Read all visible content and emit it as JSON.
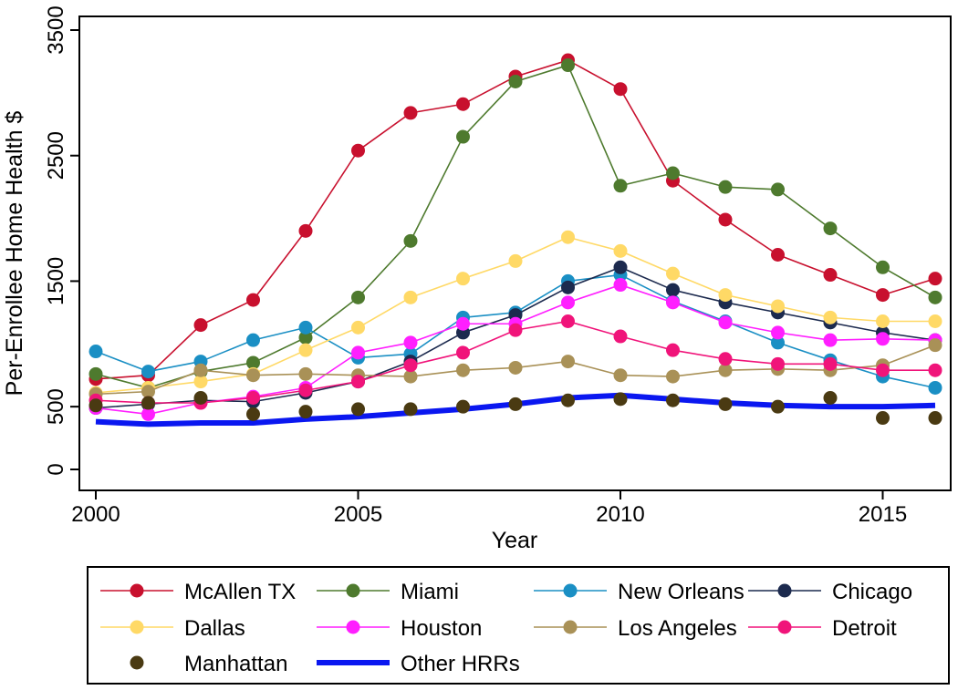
{
  "chart_data": {
    "type": "line",
    "title": "",
    "xlabel": "Year",
    "ylabel": "Per-Enrollee Home Health $",
    "xlim": [
      2000,
      2016
    ],
    "ylim": [
      0,
      3500
    ],
    "x_ticks": [
      2000,
      2005,
      2010,
      2015
    ],
    "y_ticks": [
      0,
      500,
      1500,
      2500,
      3500
    ],
    "grid": false,
    "legend_position": "bottom",
    "x": [
      2000,
      2001,
      2002,
      2003,
      2004,
      2005,
      2006,
      2007,
      2008,
      2009,
      2010,
      2011,
      2012,
      2013,
      2014,
      2015,
      2016
    ],
    "series": [
      {
        "name": "McAllen TX",
        "color": "#c8102e",
        "style": "line-marker",
        "values": [
          720,
          750,
          1150,
          1350,
          1900,
          2540,
          2840,
          2910,
          3130,
          3260,
          3030,
          2300,
          1990,
          1710,
          1550,
          1390,
          1520
        ]
      },
      {
        "name": "Miami",
        "color": "#4e7a2e",
        "style": "line-marker",
        "values": [
          760,
          650,
          780,
          850,
          1050,
          1370,
          1820,
          2650,
          3090,
          3220,
          2260,
          2360,
          2250,
          2230,
          1920,
          1610,
          1370
        ]
      },
      {
        "name": "New Orleans",
        "color": "#1a8fc4",
        "style": "line-marker",
        "values": [
          940,
          780,
          860,
          1030,
          1130,
          890,
          920,
          1210,
          1250,
          1500,
          1550,
          1340,
          1180,
          1010,
          870,
          740,
          650
        ]
      },
      {
        "name": "Chicago",
        "color": "#1c2a4e",
        "style": "line-marker",
        "values": [
          490,
          520,
          550,
          540,
          610,
          700,
          860,
          1090,
          1230,
          1450,
          1610,
          1430,
          1330,
          1250,
          1170,
          1090,
          1030
        ]
      },
      {
        "name": "Dallas",
        "color": "#ffd966",
        "style": "line-marker",
        "values": [
          610,
          650,
          700,
          760,
          950,
          1130,
          1370,
          1520,
          1660,
          1850,
          1740,
          1560,
          1390,
          1300,
          1210,
          1180,
          1180
        ]
      },
      {
        "name": "Houston",
        "color": "#ff1fff",
        "style": "line-marker",
        "values": [
          490,
          440,
          530,
          580,
          650,
          930,
          1010,
          1160,
          1160,
          1330,
          1470,
          1330,
          1170,
          1090,
          1030,
          1040,
          1030
        ]
      },
      {
        "name": "Los Angeles",
        "color": "#a99157",
        "style": "line-marker",
        "values": [
          600,
          620,
          790,
          750,
          760,
          750,
          740,
          790,
          810,
          860,
          750,
          740,
          790,
          800,
          790,
          830,
          990
        ]
      },
      {
        "name": "Detroit",
        "color": "#f0147a",
        "style": "line-marker",
        "values": [
          550,
          530,
          530,
          570,
          630,
          700,
          830,
          930,
          1110,
          1180,
          1060,
          950,
          880,
          840,
          840,
          790,
          790
        ]
      },
      {
        "name": "Manhattan",
        "color": "#4a3a12",
        "style": "marker-only",
        "values": [
          510,
          530,
          570,
          440,
          460,
          480,
          480,
          500,
          520,
          550,
          560,
          550,
          520,
          500,
          570,
          410,
          410
        ]
      },
      {
        "name": "Other HRRs",
        "color": "#0a17f0",
        "style": "thick-line",
        "values": [
          380,
          360,
          370,
          370,
          400,
          420,
          450,
          480,
          520,
          570,
          590,
          560,
          530,
          510,
          500,
          500,
          510
        ]
      }
    ]
  }
}
